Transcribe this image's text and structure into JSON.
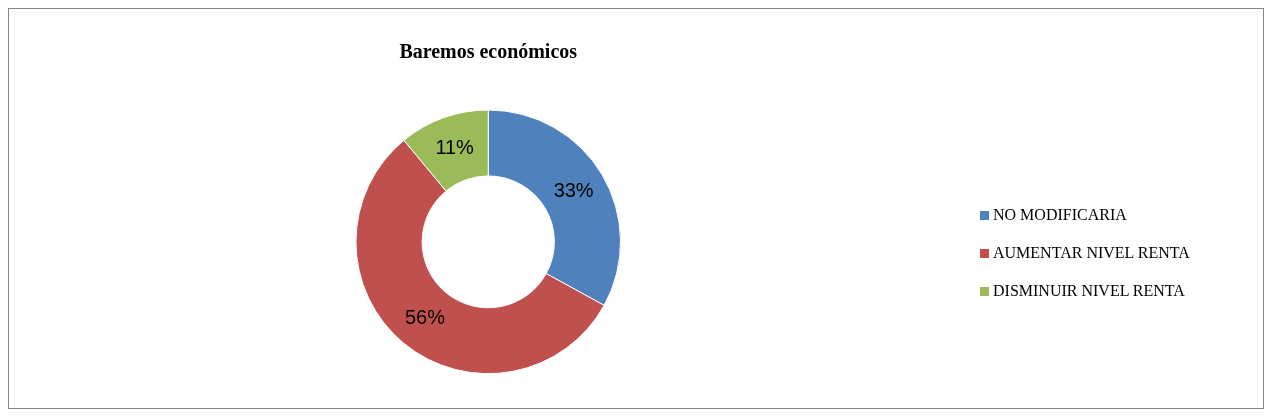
{
  "chart_data": {
    "type": "donut",
    "title": "Baremos económicos",
    "categories": [
      "NO MODIFICARIA",
      "AUMENTAR NIVEL RENTA",
      "DISMINUIR NIVEL RENTA"
    ],
    "values": [
      33,
      56,
      11
    ],
    "colors": [
      "#4f81bd",
      "#c0504d",
      "#9bbb59"
    ],
    "value_labels": [
      "33%",
      "56%",
      "11%"
    ],
    "legend": "right"
  }
}
